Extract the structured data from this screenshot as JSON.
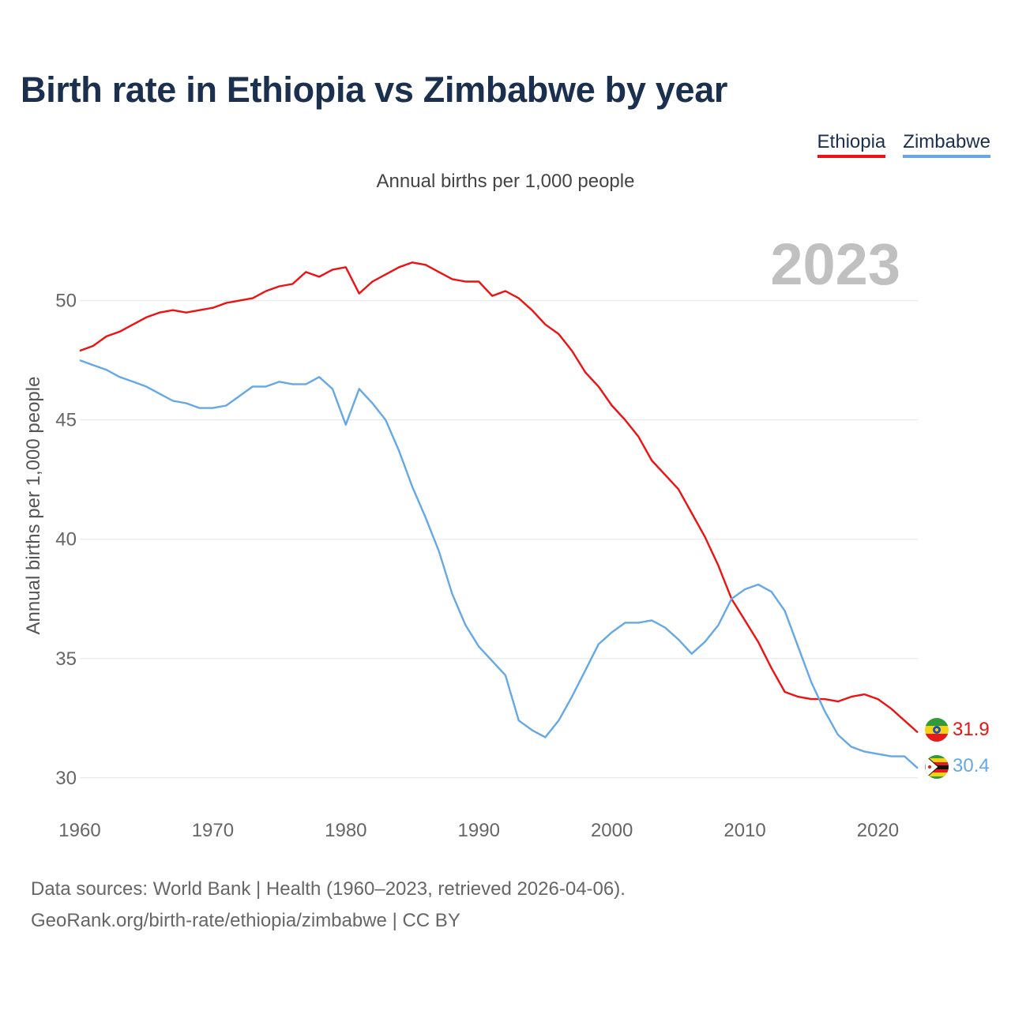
{
  "title": "Birth rate in Ethiopia vs Zimbabwe by year",
  "subtitle": "Annual births per 1,000 people",
  "legend": [
    {
      "name": "Ethiopia",
      "color": "#ee1111"
    },
    {
      "name": "Zimbabwe",
      "color": "#64a8e6"
    }
  ],
  "year_label": "2023",
  "footer": {
    "line1": "Data sources: World Bank | Health (1960–2023, retrieved 2026-04-06).",
    "line2": "GeoRank.org/birth-rate/ethiopia/zimbabwe | CC BY"
  },
  "chart_data": {
    "type": "line",
    "title": "Birth rate in Ethiopia vs Zimbabwe by year",
    "xlabel": "",
    "ylabel": "Annual births per 1,000 people",
    "xlim": [
      1960,
      2023
    ],
    "ylim": [
      29,
      53
    ],
    "x_ticks": [
      1960,
      1970,
      1980,
      1990,
      2000,
      2010,
      2020
    ],
    "y_ticks": [
      30,
      35,
      40,
      45,
      50
    ],
    "grid": true,
    "x": [
      1960,
      1961,
      1962,
      1963,
      1964,
      1965,
      1966,
      1967,
      1968,
      1969,
      1970,
      1971,
      1972,
      1973,
      1974,
      1975,
      1976,
      1977,
      1978,
      1979,
      1980,
      1981,
      1982,
      1983,
      1984,
      1985,
      1986,
      1987,
      1988,
      1989,
      1990,
      1991,
      1992,
      1993,
      1994,
      1995,
      1996,
      1997,
      1998,
      1999,
      2000,
      2001,
      2002,
      2003,
      2004,
      2005,
      2006,
      2007,
      2008,
      2009,
      2010,
      2011,
      2012,
      2013,
      2014,
      2015,
      2016,
      2017,
      2018,
      2019,
      2020,
      2021,
      2022,
      2023
    ],
    "series": [
      {
        "name": "Ethiopia",
        "color": "#ee1111",
        "end_label": "31.9",
        "values": [
          47.9,
          48.1,
          48.5,
          48.7,
          49.0,
          49.3,
          49.5,
          49.6,
          49.5,
          49.6,
          49.7,
          49.9,
          50.0,
          50.1,
          50.4,
          50.6,
          50.7,
          51.2,
          51.0,
          51.3,
          51.4,
          50.3,
          50.8,
          51.1,
          51.4,
          51.6,
          51.5,
          51.2,
          50.9,
          50.8,
          50.8,
          50.2,
          50.4,
          50.1,
          49.6,
          49.0,
          48.6,
          47.9,
          47.0,
          46.4,
          45.6,
          45.0,
          44.3,
          43.3,
          42.7,
          42.1,
          41.1,
          40.1,
          38.9,
          37.5,
          36.6,
          35.7,
          34.6,
          33.6,
          33.4,
          33.3,
          33.3,
          33.2,
          33.4,
          33.5,
          33.3,
          32.9,
          32.4,
          31.9
        ]
      },
      {
        "name": "Zimbabwe",
        "color": "#64a8e6",
        "end_label": "30.4",
        "values": [
          47.5,
          47.3,
          47.1,
          46.8,
          46.6,
          46.4,
          46.1,
          45.8,
          45.7,
          45.5,
          45.5,
          45.6,
          46.0,
          46.4,
          46.4,
          46.6,
          46.5,
          46.5,
          46.8,
          46.3,
          44.8,
          46.3,
          45.7,
          45.0,
          43.7,
          42.2,
          40.9,
          39.5,
          37.7,
          36.4,
          35.5,
          34.9,
          34.3,
          32.4,
          32.0,
          31.7,
          32.4,
          33.4,
          34.5,
          35.6,
          36.1,
          36.5,
          36.5,
          36.6,
          36.3,
          35.8,
          35.2,
          35.7,
          36.4,
          37.5,
          37.9,
          38.1,
          37.8,
          37.0,
          35.5,
          34.0,
          32.8,
          31.8,
          31.3,
          31.1,
          31.0,
          30.9,
          30.9,
          30.4
        ]
      }
    ]
  }
}
